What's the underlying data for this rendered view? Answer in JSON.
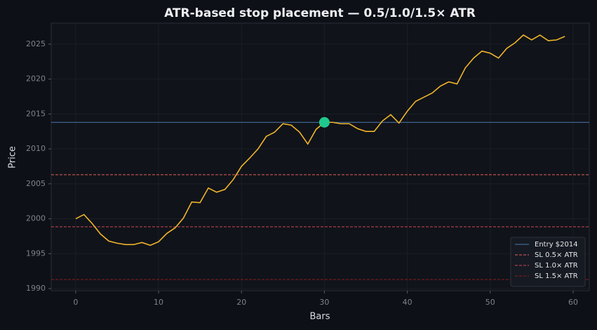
{
  "chart_data": {
    "type": "line",
    "title": "ATR-based stop placement — 0.5/1.0/1.5× ATR",
    "x_label": "Bars",
    "y_label": "Price",
    "xlim": [
      -2.95,
      61.95
    ],
    "ylim": [
      1989.7,
      2028.0
    ],
    "xticks": [
      0,
      10,
      20,
      30,
      40,
      50,
      60
    ],
    "yticks": [
      1990,
      1995,
      2000,
      2005,
      2010,
      2015,
      2020,
      2025
    ],
    "grid": true,
    "legend": "lower right",
    "x": [
      0,
      1,
      2,
      3,
      4,
      5,
      6,
      7,
      8,
      9,
      10,
      11,
      12,
      13,
      14,
      15,
      16,
      17,
      18,
      19,
      20,
      21,
      22,
      23,
      24,
      25,
      26,
      27,
      28,
      29,
      30,
      31,
      32,
      33,
      34,
      35,
      36,
      37,
      38,
      39,
      40,
      41,
      42,
      43,
      44,
      45,
      46,
      47,
      48,
      49,
      50,
      51,
      52,
      53,
      54,
      55,
      56,
      57,
      58,
      59
    ],
    "series": [
      {
        "color": "#f0b429",
        "values": [
          2000.0,
          2000.6,
          1999.3,
          1997.8,
          1996.8,
          1996.5,
          1996.3,
          1996.3,
          1996.6,
          1996.2,
          1996.7,
          1997.9,
          1998.7,
          2000.1,
          2002.4,
          2002.3,
          2004.4,
          2003.8,
          2004.2,
          2005.6,
          2007.5,
          2008.7,
          2010.0,
          2011.8,
          2012.4,
          2013.6,
          2013.4,
          2012.4,
          2010.7,
          2012.8,
          2013.8,
          2013.8,
          2013.6,
          2013.6,
          2012.9,
          2012.5,
          2012.5,
          2014.0,
          2014.9,
          2013.7,
          2015.4,
          2016.8,
          2017.4,
          2018.0,
          2019.0,
          2019.6,
          2019.3,
          2021.6,
          2023.0,
          2024.0,
          2023.7,
          2023.0,
          2024.4,
          2025.2,
          2026.3,
          2025.6,
          2026.3,
          2025.5,
          2025.6,
          2026.1
        ]
      }
    ],
    "hlines": [
      {
        "name": "Entry $2014",
        "value": 2013.8,
        "color": "#4a78a8",
        "dash": false
      },
      {
        "name": "SL 0.5× ATR",
        "value": 2006.3,
        "color": "#e0605a",
        "dash": true
      },
      {
        "name": "SL 1.0× ATR",
        "value": 1998.85,
        "color": "#d04652",
        "dash": true
      },
      {
        "name": "SL 1.5× ATR",
        "value": 1991.3,
        "color": "#8a1c22",
        "dash": true
      }
    ],
    "entry_point": {
      "x": 30,
      "y": 2013.8,
      "color": "#1fc98e"
    }
  }
}
